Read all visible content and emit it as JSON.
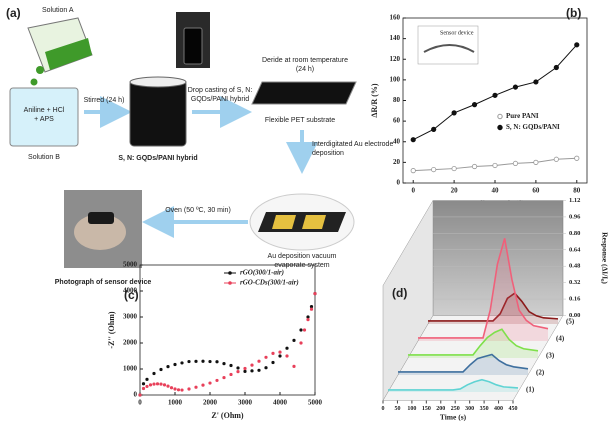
{
  "diagram": {
    "label": "(a)",
    "solution_a": "Solution A",
    "solution_b_contents": [
      "Aniline + HCl",
      "+ APS"
    ],
    "solution_b": "Solution B",
    "stir": "Stirred (24 h)",
    "hybrid": "S, N: GQDs/PANI hybrid",
    "drop_casting": [
      "Drop casting of S, N:",
      "GQDs/PANI hybrid"
    ],
    "dry": [
      "Deride at room temperature",
      "(24 h)"
    ],
    "substrate": "Flexible PET substrate",
    "electrode": [
      "Interdigitated Au electrode",
      "deposition"
    ],
    "evaporation": [
      "Au deposition vacuum",
      "evaporate system"
    ],
    "oven": "Oven (50 ºC, 30 min)",
    "photo": "Photograph of sensor device"
  },
  "chart_data": [
    {
      "type": "line",
      "label": "(b)",
      "inset": "Sensor device",
      "xlabel": "Bending angle (θ)",
      "ylabel": "ΔR/R (%)",
      "x": [
        0,
        10,
        20,
        30,
        40,
        50,
        60,
        70,
        80
      ],
      "series": [
        {
          "name": "Pure PANI",
          "color": "#999999",
          "marker": "open",
          "values": [
            12,
            13,
            14,
            16,
            17,
            19,
            20,
            23,
            24
          ]
        },
        {
          "name": "S, N: GQDs/PANI",
          "color": "#111111",
          "marker": "filled",
          "values": [
            42,
            52,
            68,
            76,
            85,
            93,
            98,
            112,
            134
          ]
        }
      ],
      "xlim": [
        -5,
        85
      ],
      "xticks": [
        0,
        20,
        40,
        60,
        80
      ],
      "ylim": [
        0,
        160
      ],
      "yticks": [
        0,
        20,
        40,
        60,
        80,
        100,
        120,
        140,
        160
      ],
      "legend": "right"
    },
    {
      "type": "scatter",
      "label": "(c)",
      "xlabel": "Z' (Ohm)",
      "ylabel": "-Z'' (Ohm)",
      "series": [
        {
          "name": "rGO(300/1-air)",
          "color": "#111111",
          "x": [
            0,
            100,
            200,
            400,
            600,
            800,
            1000,
            1200,
            1400,
            1600,
            1800,
            2000,
            2200,
            2400,
            2600,
            2800,
            3000,
            3200,
            3400,
            3600,
            3800,
            4000,
            4200,
            4400,
            4600,
            4800,
            4900,
            5000
          ],
          "values": [
            0,
            433,
            603,
            827,
            980,
            1092,
            1174,
            1234,
            1287,
            1295,
            1299,
            1287,
            1278,
            1207,
            1136,
            1040,
            910,
            930,
            950,
            1050,
            1250,
            1500,
            1800,
            2100,
            2500,
            3000,
            3400,
            3900
          ]
        },
        {
          "name": "rGO-CDs(300/1-air)",
          "color": "#e8405a",
          "x": [
            0,
            100,
            200,
            300,
            400,
            500,
            600,
            700,
            800,
            900,
            1000,
            1100,
            1200,
            1400,
            1600,
            1800,
            2000,
            2200,
            2400,
            2600,
            2800,
            3000,
            3200,
            3400,
            3600,
            3800,
            4000,
            4200,
            4400,
            4600,
            4700,
            4800,
            4900,
            5000
          ],
          "values": [
            0,
            250,
            330,
            390,
            420,
            430,
            420,
            390,
            340,
            280,
            230,
            200,
            190,
            230,
            300,
            380,
            460,
            560,
            670,
            790,
            900,
            1020,
            1150,
            1300,
            1450,
            1600,
            1650,
            1500,
            1100,
            2000,
            2500,
            2900,
            3300,
            3900
          ]
        }
      ],
      "xlim": [
        0,
        5000
      ],
      "xticks": [
        0,
        1000,
        2000,
        3000,
        4000,
        5000
      ],
      "ylim": [
        0,
        5000
      ],
      "yticks": [
        0,
        1000,
        2000,
        3000,
        4000,
        5000
      ],
      "legend": "upper center"
    },
    {
      "type": "waterfall",
      "label": "(d)",
      "xlabel": "Time (s)",
      "ylabel": "Response (ΔI/I₀)",
      "x": [
        0,
        50,
        100,
        150,
        200,
        225,
        250,
        275,
        300,
        325,
        350,
        375,
        400,
        450
      ],
      "series": [
        {
          "name": "(1)",
          "color": "#5fd3d3",
          "values": [
            0.02,
            0.02,
            0.02,
            0.02,
            0.02,
            0.02,
            0.03,
            0.07,
            0.1,
            0.12,
            0.1,
            0.07,
            0.05,
            0.04
          ]
        },
        {
          "name": "(2)",
          "color": "#3e6f9e",
          "values": [
            0.03,
            0.03,
            0.03,
            0.03,
            0.03,
            0.03,
            0.1,
            0.16,
            0.18,
            0.2,
            0.14,
            0.1,
            0.08,
            0.06
          ]
        },
        {
          "name": "(3)",
          "color": "#7ee04a",
          "values": [
            0.03,
            0.03,
            0.03,
            0.03,
            0.03,
            0.03,
            0.12,
            0.2,
            0.25,
            0.28,
            0.18,
            0.12,
            0.09,
            0.07
          ]
        },
        {
          "name": "(4)",
          "color": "#f0607a",
          "values": [
            0.03,
            0.03,
            0.03,
            0.03,
            0.03,
            0.03,
            0.3,
            0.75,
            1.0,
            0.6,
            0.3,
            0.2,
            0.15,
            0.12
          ]
        },
        {
          "name": "(5)",
          "color": "#8b1a1a",
          "values": [
            0.03,
            0.03,
            0.03,
            0.03,
            0.03,
            0.03,
            0.1,
            0.25,
            0.3,
            0.22,
            0.12,
            0.08,
            0.06,
            0.05
          ]
        }
      ],
      "xlim": [
        0,
        450
      ],
      "xticks": [
        0,
        50,
        100,
        150,
        200,
        250,
        300,
        350,
        400,
        450
      ],
      "ylim": [
        0,
        1.12
      ],
      "yticks": [
        {
          "value": 0,
          "label": "0.00"
        },
        0.16,
        0.32,
        0.48,
        0.64,
        {
          "value": 0.8,
          "label": "0.80"
        },
        0.96,
        1.12
      ]
    }
  ]
}
